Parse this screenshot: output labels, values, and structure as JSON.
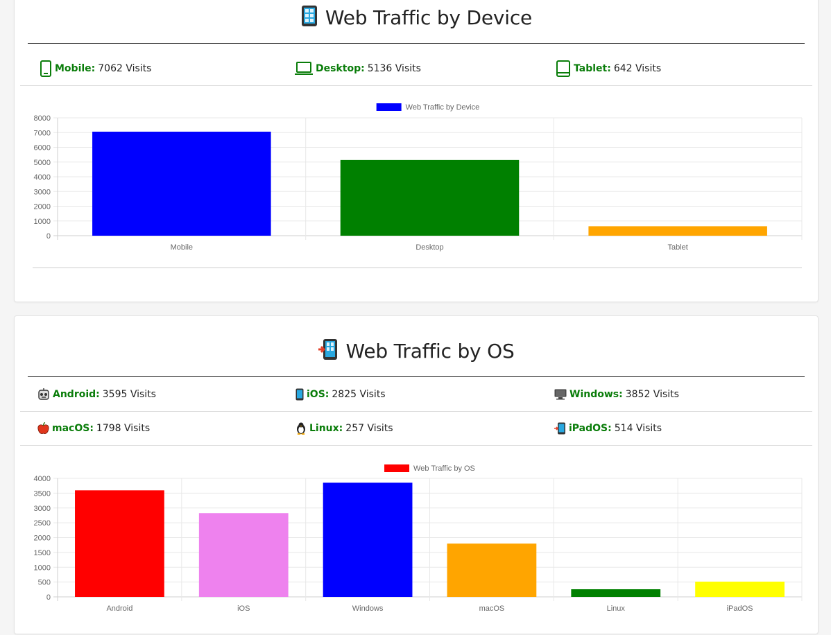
{
  "sections": [
    {
      "title": "Web Traffic by Device",
      "title_emoji": "phone-icon",
      "stats": [
        {
          "icon": "mobile-outline-icon",
          "label": "Mobile:",
          "value": "7062 Visits"
        },
        {
          "icon": "laptop-outline-icon",
          "label": "Desktop:",
          "value": "5136 Visits"
        },
        {
          "icon": "tablet-outline-icon",
          "label": "Tablet:",
          "value": "642 Visits"
        }
      ]
    },
    {
      "title": "Web Traffic by OS",
      "title_emoji": "phone-arrow-icon",
      "stats": [
        {
          "icon": "robot-face-icon",
          "label": "Android:",
          "value": "3595 Visits"
        },
        {
          "icon": "phone-icon",
          "label": "iOS:",
          "value": "2825 Visits"
        },
        {
          "icon": "desktop-computer-icon",
          "label": "Windows:",
          "value": "3852 Visits"
        },
        {
          "icon": "apple-icon",
          "label": "macOS:",
          "value": "1798 Visits"
        },
        {
          "icon": "penguin-icon",
          "label": "Linux:",
          "value": "257 Visits"
        },
        {
          "icon": "phone-arrow-icon",
          "label": "iPadOS:",
          "value": "514 Visits"
        }
      ]
    }
  ],
  "chart_data": [
    {
      "type": "bar",
      "categories": [
        "Mobile",
        "Desktop",
        "Tablet"
      ],
      "series": [
        {
          "name": "Web Traffic by Device",
          "values": [
            7062,
            5136,
            642
          ]
        }
      ],
      "colors": [
        "#0000ff",
        "#008000",
        "#ffa500"
      ],
      "legend_color": "#0000ff",
      "ylim": [
        0,
        8000
      ],
      "yticks": [
        "8000",
        "7000",
        "6000",
        "5000",
        "4000",
        "3000",
        "2000",
        "1000",
        "0"
      ],
      "grid": true,
      "legend": "top-center"
    },
    {
      "type": "bar",
      "categories": [
        "Android",
        "iOS",
        "Windows",
        "macOS",
        "Linux",
        "iPadOS"
      ],
      "series": [
        {
          "name": "Web Traffic by OS",
          "values": [
            3595,
            2825,
            3852,
            1798,
            257,
            514
          ]
        }
      ],
      "colors": [
        "#ff0000",
        "#ee82ee",
        "#0000ff",
        "#ffa500",
        "#008000",
        "#ffff00"
      ],
      "legend_color": "#ff0000",
      "ylim": [
        0,
        4000
      ],
      "yticks": [
        "4000",
        "3500",
        "3000",
        "2500",
        "2000",
        "1500",
        "1000",
        "500",
        "0"
      ],
      "grid": true,
      "legend": "top-center"
    }
  ]
}
